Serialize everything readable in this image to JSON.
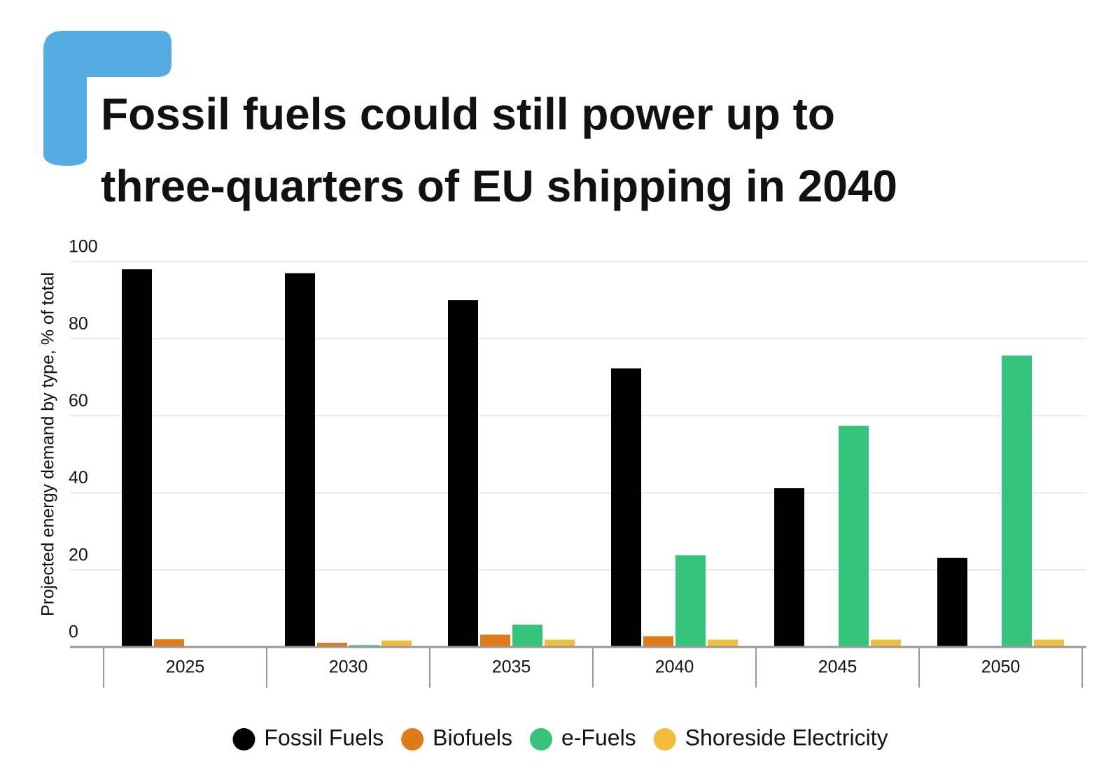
{
  "chart_data": {
    "type": "bar",
    "title": [
      "Fossil fuels could still power up to",
      "three-quarters of EU shipping in 2040"
    ],
    "y_label": "Projected energy demand by type, % of total",
    "categories": [
      "2025",
      "2030",
      "2035",
      "2040",
      "2045",
      "2050"
    ],
    "series": [
      {
        "name": "Fossil Fuels",
        "color": "#000000",
        "values": [
          98,
          97,
          90,
          72.3,
          41.2,
          23.1
        ]
      },
      {
        "name": "Biofuels",
        "color": "#e07b1a",
        "values": [
          2,
          1.1,
          3.2,
          2.8,
          0,
          0
        ]
      },
      {
        "name": "e-Fuels",
        "color": "#36c47c",
        "values": [
          0,
          0.5,
          5.8,
          23.8,
          57.4,
          75.6
        ]
      },
      {
        "name": "Shoreside Electricity",
        "color": "#f0bd3c",
        "values": [
          0.2,
          1.7,
          1.9,
          1.9,
          1.9,
          1.9
        ]
      }
    ],
    "ylim": [
      0,
      100
    ],
    "yticks": [
      0,
      20,
      40,
      60,
      80,
      100
    ],
    "grid": true,
    "legend": "bottom"
  }
}
